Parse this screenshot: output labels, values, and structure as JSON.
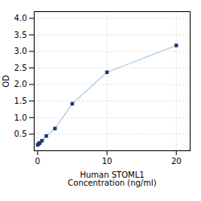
{
  "chart_data": {
    "type": "line",
    "xlabel": "Human STOML1\nConcentration (ng/ml)",
    "ylabel": "OD",
    "x": [
      0,
      0.156,
      0.313,
      0.625,
      1.25,
      2.5,
      5,
      10,
      20
    ],
    "series": [
      {
        "type": "line",
        "color": "#b8d4ea",
        "values": [
          0.176,
          0.211,
          0.238,
          0.302,
          0.446,
          0.671,
          1.42,
          2.37,
          3.18
        ]
      },
      {
        "type": "scatter",
        "color": "#1a3a6b",
        "marker": "square",
        "values": [
          0.176,
          0.211,
          0.238,
          0.302,
          0.446,
          0.671,
          1.42,
          2.37,
          3.18
        ]
      }
    ],
    "xlim": [
      -0.5,
      22
    ],
    "ylim": [
      0,
      4.2
    ],
    "xticks": [
      0,
      10,
      20
    ],
    "yticks": [
      0.5,
      1,
      1.5,
      2,
      2.5,
      3,
      3.5,
      4
    ],
    "grid": true
  }
}
